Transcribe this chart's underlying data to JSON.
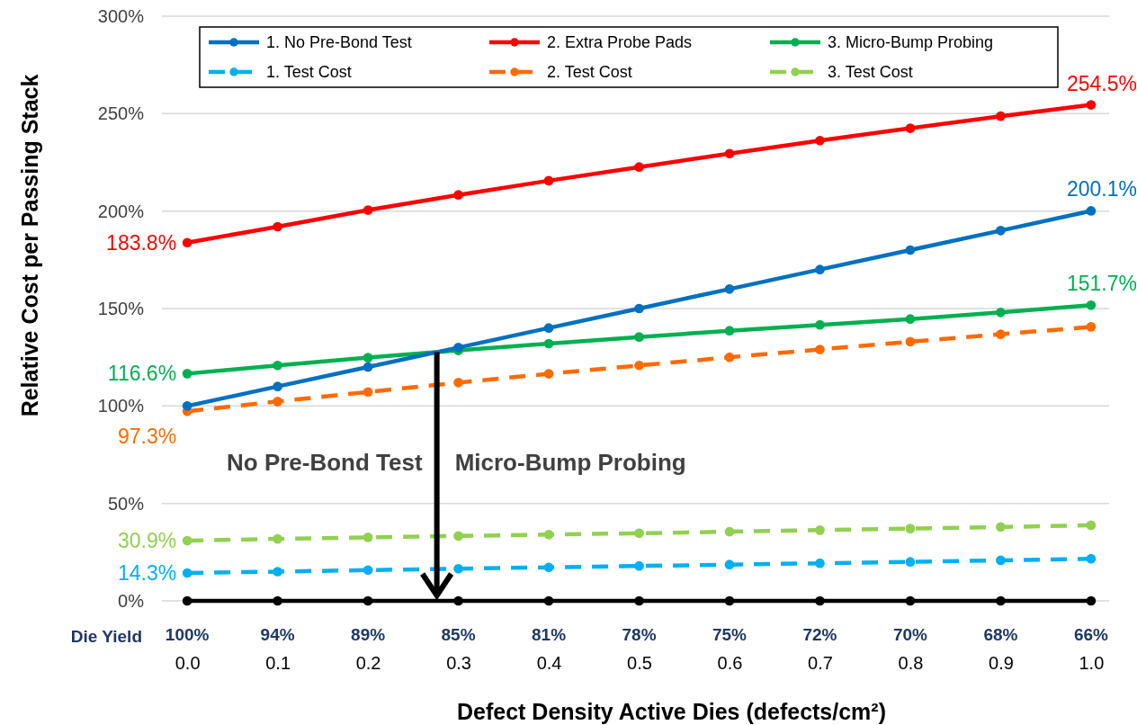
{
  "chart_data": {
    "type": "line",
    "xlabel": "Defect Density Active Dies (defects/cm²)",
    "ylabel": "Relative Cost per Passing Stack",
    "x": [
      0,
      0.1,
      0.2,
      0.3,
      0.4,
      0.5,
      0.6,
      0.7,
      0.8,
      0.9,
      1.0
    ],
    "xlim": [
      -0.028,
      1.02
    ],
    "xticks": [
      {
        "value": 0,
        "label": "0.0"
      },
      0.1,
      0.2,
      0.3,
      0.4,
      0.5,
      0.6,
      0.7,
      0.8,
      0.9,
      {
        "value": 1,
        "label": "1.0"
      }
    ],
    "ylim": [
      0,
      300
    ],
    "yticks": [
      {
        "value": 0,
        "label": "0%"
      },
      {
        "value": 50,
        "label": "50%"
      },
      {
        "value": 100,
        "label": "100%"
      },
      {
        "value": 150,
        "label": "150%"
      },
      {
        "value": 200,
        "label": "200%"
      },
      {
        "value": 250,
        "label": "250%"
      },
      {
        "value": 300,
        "label": "300%"
      }
    ],
    "grid": "y",
    "legend": "top",
    "marker": "circle",
    "series": [
      {
        "name": "1. No Pre-Bond Test",
        "color": "#0070c0",
        "line_style": "solid",
        "values": [
          100,
          110,
          120,
          130,
          140,
          150,
          160,
          170,
          180,
          190,
          200.1
        ],
        "value_labels": [
          null,
          null,
          null,
          null,
          null,
          null,
          null,
          null,
          null,
          null,
          "200.1%"
        ]
      },
      {
        "name": "2. Extra Probe Pads",
        "color": "#ff0000",
        "line_style": "solid",
        "values": [
          183.8,
          192,
          200.5,
          208.3,
          215.6,
          222.6,
          229.5,
          236.2,
          242.5,
          248.7,
          254.5
        ],
        "value_labels": [
          "183.8%",
          null,
          null,
          null,
          null,
          null,
          null,
          null,
          null,
          null,
          "254.5%"
        ]
      },
      {
        "name": "3. Micro-Bump Probing",
        "color": "#00b050",
        "line_style": "solid",
        "values": [
          116.6,
          120.8,
          124.8,
          128.5,
          132,
          135.4,
          138.6,
          141.6,
          144.6,
          148,
          151.7
        ],
        "value_labels": [
          "116.6%",
          null,
          null,
          null,
          null,
          null,
          null,
          null,
          null,
          null,
          "151.7%"
        ]
      },
      {
        "name": "1. Test Cost",
        "color": "#00b0f0",
        "line_style": "dashed",
        "values": [
          14.3,
          15,
          15.8,
          16.5,
          17.2,
          17.9,
          18.6,
          19.3,
          20,
          20.8,
          21.6
        ],
        "value_labels": [
          "14.3%",
          null,
          null,
          null,
          null,
          null,
          null,
          null,
          null,
          null,
          null
        ]
      },
      {
        "name": "2. Test Cost",
        "color": "#ff6a00",
        "line_style": "dashed",
        "values": [
          97.3,
          102.3,
          107.2,
          112,
          116.5,
          120.8,
          125,
          129,
          133,
          136.8,
          140.6
        ],
        "value_labels": [
          "97.3%",
          null,
          null,
          null,
          null,
          null,
          null,
          null,
          null,
          null,
          null
        ]
      },
      {
        "name": "3. Test Cost",
        "color": "#92d050",
        "line_style": "dashed",
        "values": [
          30.9,
          31.8,
          32.6,
          33.3,
          34,
          34.7,
          35.5,
          36.3,
          37.1,
          37.9,
          38.8
        ],
        "value_labels": [
          "30.9%",
          null,
          null,
          null,
          null,
          null,
          null,
          null,
          null,
          null,
          null
        ]
      },
      {
        "color": "#000000",
        "line_style": "solid",
        "values": [
          0,
          0,
          0,
          0,
          0,
          0,
          0,
          0,
          0,
          0,
          0
        ]
      }
    ],
    "annotations": [
      "No Pre-Bond Test",
      "Micro-Bump Probing",
      "Die Yield",
      "100%",
      "94%",
      "89%",
      "85%",
      "81%",
      "78%",
      "75%",
      "72%",
      "70%",
      "68%",
      "66%"
    ]
  }
}
